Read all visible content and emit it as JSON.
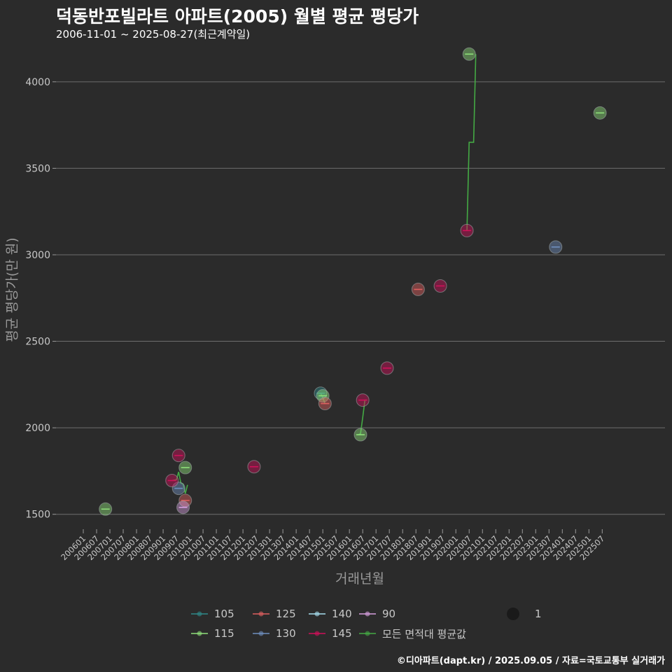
{
  "title": "덕동반포빌라트 아파트(2005) 월별 평균 평당가",
  "subtitle": "2006-11-01 ~ 2025-08-27(최근계약일)",
  "caption": "©디아파트(dapt.kr) / 2025.09.05 / 자료=국토교통부 실거래가",
  "chart_data": {
    "type": "scatter",
    "xlabel": "거래년월",
    "ylabel": "평균 평당가(만 원)",
    "ylim": [
      1430,
      4230
    ],
    "yticks": [
      1500,
      2000,
      2500,
      3000,
      3500,
      4000
    ],
    "grid": "horizontal",
    "x_tick_labels": [
      "200601",
      "200607",
      "200701",
      "200707",
      "200801",
      "200807",
      "200901",
      "200907",
      "201001",
      "201007",
      "201101",
      "201107",
      "201201",
      "201207",
      "201301",
      "201307",
      "201401",
      "201407",
      "201501",
      "201507",
      "201601",
      "201607",
      "201701",
      "201707",
      "201801",
      "201807",
      "201901",
      "201907",
      "202001",
      "202007",
      "202101",
      "202107",
      "202201",
      "202207",
      "202301",
      "202307",
      "202401",
      "202407",
      "202501",
      "202507"
    ],
    "x_start": "2006-01",
    "legend_position": "bottom",
    "colors": {
      "105": "#2e8b8b",
      "115": "#8fe07a",
      "125": "#e06060",
      "130": "#7090c0",
      "140": "#a8e0f0",
      "145": "#d0105a",
      "90": "#d8a0e0",
      "all": "#44aa44"
    },
    "series": [
      {
        "name": "105",
        "points": [
          {
            "x": "2014-12",
            "y": 2200
          }
        ]
      },
      {
        "name": "115",
        "points": [
          {
            "x": "2006-11",
            "y": 1530
          },
          {
            "x": "2009-11",
            "y": 1770
          },
          {
            "x": "2015-01",
            "y": 2185
          },
          {
            "x": "2016-06",
            "y": 1960
          },
          {
            "x": "2020-07",
            "y": 4160
          },
          {
            "x": "2025-06",
            "y": 3820
          }
        ]
      },
      {
        "name": "125",
        "points": [
          {
            "x": "2009-11",
            "y": 1580
          },
          {
            "x": "2015-02",
            "y": 2140
          },
          {
            "x": "2018-08",
            "y": 2800
          }
        ]
      },
      {
        "name": "130",
        "points": [
          {
            "x": "2009-08",
            "y": 1650
          },
          {
            "x": "2023-10",
            "y": 3045
          }
        ]
      },
      {
        "name": "140",
        "points": []
      },
      {
        "name": "145",
        "points": [
          {
            "x": "2009-05",
            "y": 1695
          },
          {
            "x": "2009-08",
            "y": 1840
          },
          {
            "x": "2012-06",
            "y": 1775
          },
          {
            "x": "2016-07",
            "y": 2160
          },
          {
            "x": "2017-06",
            "y": 2345
          },
          {
            "x": "2019-06",
            "y": 2820
          },
          {
            "x": "2020-06",
            "y": 3140
          }
        ]
      },
      {
        "name": "90",
        "points": [
          {
            "x": "2009-10",
            "y": 1540
          }
        ]
      }
    ],
    "average_line": {
      "name": "모든 면적대 평균값",
      "segments": [
        [
          {
            "x": "2009-05",
            "y": 1695
          },
          {
            "x": "2009-07",
            "y": 1700
          },
          {
            "x": "2009-08",
            "y": 1745
          },
          {
            "x": "2009-09",
            "y": 1680
          },
          {
            "x": "2009-10",
            "y": 1675
          },
          {
            "x": "2009-11",
            "y": 1620
          },
          {
            "x": "2009-12",
            "y": 1670
          }
        ],
        [
          {
            "x": "2014-12",
            "y": 2200
          },
          {
            "x": "2015-01",
            "y": 2175
          },
          {
            "x": "2015-02",
            "y": 2140
          }
        ],
        [
          {
            "x": "2016-05",
            "y": 1960
          },
          {
            "x": "2016-06",
            "y": 1965
          },
          {
            "x": "2016-07",
            "y": 2060
          },
          {
            "x": "2016-08",
            "y": 2160
          },
          {
            "x": "2016-09",
            "y": 2160
          }
        ],
        [
          {
            "x": "2020-06",
            "y": 3140
          },
          {
            "x": "2020-07",
            "y": 3650
          },
          {
            "x": "2020-09",
            "y": 3650
          },
          {
            "x": "2020-10",
            "y": 4160
          }
        ]
      ]
    },
    "size_legend": {
      "label": "1"
    }
  },
  "legend": [
    {
      "key": "105",
      "label": "105"
    },
    {
      "key": "125",
      "label": "125"
    },
    {
      "key": "140",
      "label": "140"
    },
    {
      "key": "90",
      "label": "90"
    },
    {
      "key": "115",
      "label": "115"
    },
    {
      "key": "130",
      "label": "130"
    },
    {
      "key": "145",
      "label": "145"
    },
    {
      "key": "all",
      "label": "모든 면적대 평균값"
    }
  ]
}
